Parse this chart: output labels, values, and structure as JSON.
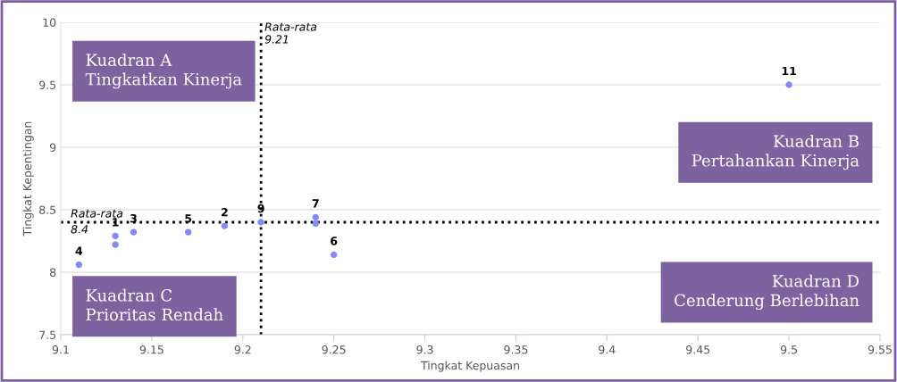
{
  "chart_data": {
    "type": "scatter",
    "xlabel": "Tingkat Kepuasan",
    "ylabel": "Tingkat Kepentingan",
    "x": [
      9.13,
      9.19,
      9.14,
      9.11,
      9.17,
      9.25,
      9.24,
      9.13,
      9.21,
      9.24,
      9.5
    ],
    "series": [
      {
        "color": "#8488f4",
        "values": [
          8.29,
          8.37,
          8.32,
          8.06,
          8.32,
          8.14,
          8.44,
          8.22,
          8.4,
          8.39,
          9.5
        ]
      }
    ],
    "xlim": [
      9.1,
      9.55
    ],
    "xticks": [
      9.1,
      9.15,
      9.2,
      9.25,
      9.3,
      9.35,
      9.4,
      9.45,
      9.5,
      9.55
    ],
    "ylim": [
      7.5,
      10
    ],
    "yticks": [
      7.5,
      8,
      8.5,
      9,
      9.5,
      10
    ],
    "grid": "y",
    "marker": "circle",
    "ref_lines": [
      {
        "axis": "x",
        "value": 9.21,
        "label": "Rata-rata\n9.21",
        "color": "#000000",
        "line_style": "dotted"
      },
      {
        "axis": "y",
        "value": 8.4,
        "label": "Rata-rata\n8.4",
        "color": "#000000",
        "line_style": "dotted"
      }
    ],
    "annotations": [
      "Kuadran A\nTingkatkan Kinerja",
      "Kuadran B\nPertahankan Kinerja",
      "Kuadran C\nPrioritas Rendah",
      "Kuadran D\nCenderung Berlebihan",
      {
        "text": "1",
        "x": 9.13,
        "y": 8.29
      },
      {
        "text": "2",
        "x": 9.19,
        "y": 8.37
      },
      {
        "text": "3",
        "x": 9.14,
        "y": 8.32
      },
      {
        "text": "4",
        "x": 9.11,
        "y": 8.06
      },
      {
        "text": "5",
        "x": 9.17,
        "y": 8.32
      },
      {
        "text": "6",
        "x": 9.25,
        "y": 8.14
      },
      {
        "text": "7",
        "x": 9.24,
        "y": 8.44
      },
      {
        "text": "9",
        "x": 9.21,
        "y": 8.4
      },
      {
        "text": "11",
        "x": 9.5,
        "y": 9.5
      }
    ]
  }
}
